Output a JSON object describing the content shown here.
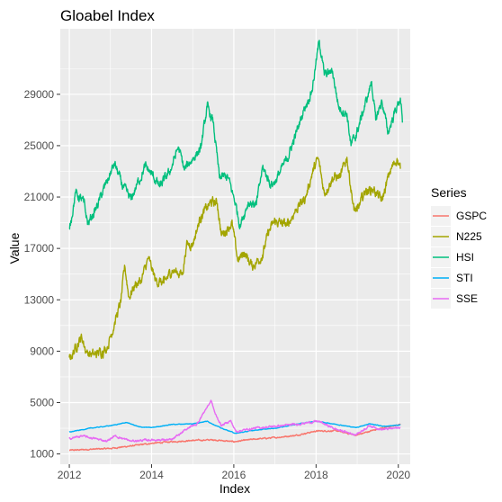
{
  "chart_data": {
    "type": "line",
    "title": "Gloabel Index",
    "xlabel": "Index",
    "ylabel": "Value",
    "xlim": [
      2011.78,
      2020.29
    ],
    "ylim": [
      200,
      34100
    ],
    "x_ticks": [
      2012,
      2014,
      2016,
      2018,
      2020
    ],
    "y_ticks": [
      1000,
      5000,
      9000,
      13000,
      17000,
      21000,
      25000,
      29000
    ],
    "grid": true,
    "legend_title": "Series",
    "legend_position": "right",
    "series": [
      {
        "name": "GSPC",
        "color": "#F8766D",
        "points": [
          [
            2012.0,
            1280
          ],
          [
            2012.5,
            1360
          ],
          [
            2013.0,
            1430
          ],
          [
            2013.5,
            1620
          ],
          [
            2014.0,
            1830
          ],
          [
            2014.5,
            1950
          ],
          [
            2015.0,
            2050
          ],
          [
            2015.5,
            2100
          ],
          [
            2016.0,
            1950
          ],
          [
            2016.5,
            2150
          ],
          [
            2017.0,
            2270
          ],
          [
            2017.5,
            2440
          ],
          [
            2018.0,
            2780
          ],
          [
            2018.5,
            2800
          ],
          [
            2018.97,
            2450
          ],
          [
            2019.5,
            2950
          ],
          [
            2020.05,
            3280
          ]
        ]
      },
      {
        "name": "N225",
        "color": "#A3A500",
        "points": [
          [
            2012.0,
            8500
          ],
          [
            2012.08,
            8800
          ],
          [
            2012.2,
            9600
          ],
          [
            2012.3,
            10100
          ],
          [
            2012.42,
            8900
          ],
          [
            2012.6,
            8700
          ],
          [
            2012.8,
            9000
          ],
          [
            2012.92,
            9300
          ],
          [
            2013.1,
            11200
          ],
          [
            2013.25,
            12800
          ],
          [
            2013.35,
            15600
          ],
          [
            2013.45,
            13200
          ],
          [
            2013.6,
            14200
          ],
          [
            2013.75,
            14500
          ],
          [
            2013.92,
            16200
          ],
          [
            2014.1,
            14500
          ],
          [
            2014.3,
            14300
          ],
          [
            2014.5,
            15300
          ],
          [
            2014.75,
            15000
          ],
          [
            2014.85,
            17300
          ],
          [
            2015.0,
            17400
          ],
          [
            2015.2,
            19500
          ],
          [
            2015.45,
            20600
          ],
          [
            2015.6,
            20500
          ],
          [
            2015.7,
            18000
          ],
          [
            2015.95,
            19000
          ],
          [
            2016.1,
            16000
          ],
          [
            2016.25,
            16700
          ],
          [
            2016.45,
            15600
          ],
          [
            2016.7,
            16500
          ],
          [
            2016.85,
            18300
          ],
          [
            2017.0,
            19100
          ],
          [
            2017.3,
            18800
          ],
          [
            2017.5,
            20000
          ],
          [
            2017.75,
            21000
          ],
          [
            2017.9,
            22800
          ],
          [
            2018.05,
            24000
          ],
          [
            2018.2,
            21300
          ],
          [
            2018.4,
            22500
          ],
          [
            2018.6,
            22600
          ],
          [
            2018.75,
            24100
          ],
          [
            2018.92,
            20000
          ],
          [
            2019.0,
            19900
          ],
          [
            2019.2,
            21500
          ],
          [
            2019.4,
            21600
          ],
          [
            2019.6,
            20700
          ],
          [
            2019.8,
            23000
          ],
          [
            2019.97,
            24000
          ],
          [
            2020.05,
            23200
          ]
        ]
      },
      {
        "name": "HSI",
        "color": "#00BF7D",
        "points": [
          [
            2012.0,
            18500
          ],
          [
            2012.15,
            21300
          ],
          [
            2012.35,
            20600
          ],
          [
            2012.45,
            18900
          ],
          [
            2012.65,
            20100
          ],
          [
            2012.85,
            21700
          ],
          [
            2013.1,
            23600
          ],
          [
            2013.3,
            21800
          ],
          [
            2013.5,
            20800
          ],
          [
            2013.65,
            22000
          ],
          [
            2013.85,
            23400
          ],
          [
            2014.0,
            22800
          ],
          [
            2014.2,
            21800
          ],
          [
            2014.45,
            23000
          ],
          [
            2014.65,
            24900
          ],
          [
            2014.8,
            23100
          ],
          [
            2015.0,
            24000
          ],
          [
            2015.2,
            24800
          ],
          [
            2015.35,
            28000
          ],
          [
            2015.5,
            26800
          ],
          [
            2015.65,
            22500
          ],
          [
            2015.85,
            22600
          ],
          [
            2016.05,
            20400
          ],
          [
            2016.15,
            18800
          ],
          [
            2016.35,
            20600
          ],
          [
            2016.55,
            20400
          ],
          [
            2016.7,
            23300
          ],
          [
            2016.9,
            22000
          ],
          [
            2017.0,
            22200
          ],
          [
            2017.3,
            24000
          ],
          [
            2017.5,
            25800
          ],
          [
            2017.7,
            27800
          ],
          [
            2017.9,
            29300
          ],
          [
            2018.08,
            33200
          ],
          [
            2018.2,
            30500
          ],
          [
            2018.4,
            30800
          ],
          [
            2018.55,
            28000
          ],
          [
            2018.75,
            27500
          ],
          [
            2018.85,
            25000
          ],
          [
            2018.97,
            25800
          ],
          [
            2019.25,
            28800
          ],
          [
            2019.35,
            30000
          ],
          [
            2019.45,
            27000
          ],
          [
            2019.6,
            28500
          ],
          [
            2019.75,
            26000
          ],
          [
            2019.9,
            27500
          ],
          [
            2020.05,
            28700
          ],
          [
            2020.1,
            26800
          ]
        ]
      },
      {
        "name": "STI",
        "color": "#00B0F6",
        "points": [
          [
            2012.0,
            2700
          ],
          [
            2012.5,
            3000
          ],
          [
            2013.0,
            3200
          ],
          [
            2013.4,
            3450
          ],
          [
            2013.7,
            3100
          ],
          [
            2014.0,
            3050
          ],
          [
            2014.5,
            3300
          ],
          [
            2015.0,
            3350
          ],
          [
            2015.35,
            3550
          ],
          [
            2015.7,
            3000
          ],
          [
            2016.05,
            2600
          ],
          [
            2016.5,
            2850
          ],
          [
            2017.0,
            3000
          ],
          [
            2017.5,
            3300
          ],
          [
            2018.0,
            3550
          ],
          [
            2018.5,
            3300
          ],
          [
            2018.97,
            3050
          ],
          [
            2019.3,
            3350
          ],
          [
            2019.65,
            3150
          ],
          [
            2020.05,
            3250
          ]
        ]
      },
      {
        "name": "SSE",
        "color": "#E76BF3",
        "points": [
          [
            2012.0,
            2200
          ],
          [
            2012.3,
            2400
          ],
          [
            2012.92,
            2000
          ],
          [
            2013.1,
            2400
          ],
          [
            2013.5,
            2000
          ],
          [
            2014.0,
            2100
          ],
          [
            2014.5,
            2100
          ],
          [
            2014.92,
            3100
          ],
          [
            2015.1,
            3300
          ],
          [
            2015.3,
            4400
          ],
          [
            2015.45,
            5150
          ],
          [
            2015.55,
            4100
          ],
          [
            2015.7,
            3200
          ],
          [
            2015.92,
            3600
          ],
          [
            2016.05,
            2750
          ],
          [
            2016.5,
            3000
          ],
          [
            2017.0,
            3150
          ],
          [
            2017.5,
            3300
          ],
          [
            2018.05,
            3550
          ],
          [
            2018.5,
            2900
          ],
          [
            2018.97,
            2500
          ],
          [
            2019.3,
            3200
          ],
          [
            2019.6,
            2900
          ],
          [
            2020.05,
            3050
          ]
        ]
      }
    ]
  }
}
